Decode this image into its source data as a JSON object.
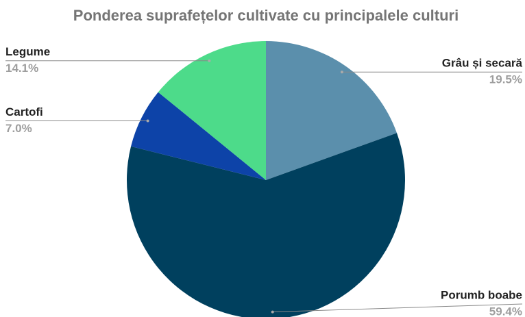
{
  "chart_data": {
    "type": "pie",
    "title": "Ponderea suprafețelor cultivate cu principalele culturi",
    "categories": [
      "Grâu și secară",
      "Porumb boabe",
      "Cartofi",
      "Legume"
    ],
    "values": [
      19.5,
      59.4,
      7.0,
      14.1
    ],
    "value_labels": [
      "19.5%",
      "59.4%",
      "7.0%",
      "14.1%"
    ],
    "colors": [
      "#5b8fac",
      "#00405e",
      "#0d43a8",
      "#4ddb8a"
    ]
  }
}
